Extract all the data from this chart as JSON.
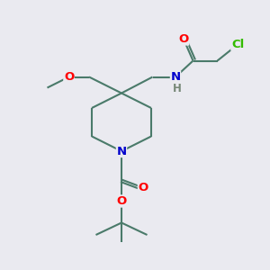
{
  "background_color": "#eaeaf0",
  "bond_color": "#4a7a6a",
  "bond_width": 1.5,
  "atom_colors": {
    "O": "#ff0000",
    "N": "#0000cc",
    "Cl": "#33bb00",
    "H": "#778877",
    "C": "#4a7a6a"
  },
  "font_size": 9.5,
  "figsize": [
    3.0,
    3.0
  ],
  "dpi": 100
}
